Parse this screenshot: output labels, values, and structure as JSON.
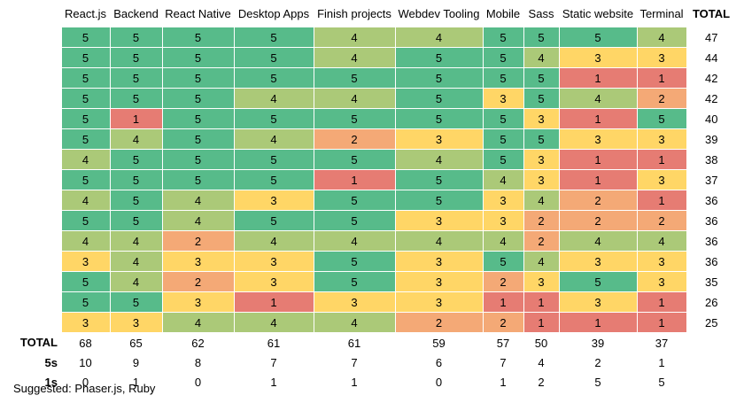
{
  "columns": [
    "React.js",
    "Backend",
    "React Native",
    "Desktop Apps",
    "Finish projects",
    "Webdev Tooling",
    "Mobile",
    "Sass",
    "Static website",
    "Terminal"
  ],
  "total_header": "TOTAL",
  "colors": {
    "5": "#57bb8a",
    "4": "#abc978",
    "3": "#ffd666",
    "2": "#f4a976",
    "1": "#e67c73"
  },
  "rows": [
    {
      "values": [
        5,
        5,
        5,
        5,
        4,
        4,
        5,
        5,
        5,
        4
      ],
      "total": "47"
    },
    {
      "values": [
        5,
        5,
        5,
        5,
        4,
        5,
        5,
        4,
        3,
        3
      ],
      "total": "44"
    },
    {
      "values": [
        5,
        5,
        5,
        5,
        5,
        5,
        5,
        5,
        1,
        1
      ],
      "total": "42"
    },
    {
      "values": [
        5,
        5,
        5,
        4,
        4,
        5,
        3,
        5,
        4,
        2
      ],
      "total": "42"
    },
    {
      "values": [
        5,
        1,
        5,
        5,
        5,
        5,
        5,
        3,
        1,
        5
      ],
      "total": "40"
    },
    {
      "values": [
        5,
        4,
        5,
        4,
        2,
        3,
        5,
        5,
        3,
        3
      ],
      "total": "39"
    },
    {
      "values": [
        4,
        5,
        5,
        5,
        5,
        4,
        5,
        3,
        1,
        1
      ],
      "total": "38"
    },
    {
      "values": [
        5,
        5,
        5,
        5,
        1,
        5,
        4,
        3,
        1,
        3
      ],
      "total": "37"
    },
    {
      "values": [
        4,
        5,
        4,
        3,
        5,
        5,
        3,
        4,
        2,
        1
      ],
      "total": "36"
    },
    {
      "values": [
        5,
        5,
        4,
        5,
        5,
        3,
        3,
        2,
        2,
        2
      ],
      "total": "36"
    },
    {
      "values": [
        4,
        4,
        2,
        4,
        4,
        4,
        4,
        2,
        4,
        4
      ],
      "total": "36"
    },
    {
      "values": [
        3,
        4,
        3,
        3,
        5,
        3,
        5,
        4,
        3,
        3
      ],
      "total": "36"
    },
    {
      "values": [
        5,
        4,
        2,
        3,
        5,
        3,
        2,
        3,
        5,
        3
      ],
      "total": "35"
    },
    {
      "values": [
        5,
        5,
        3,
        1,
        3,
        3,
        1,
        1,
        3,
        1
      ],
      "total": "26"
    },
    {
      "values": [
        3,
        3,
        4,
        4,
        4,
        2,
        2,
        1,
        1,
        1
      ],
      "total": "25"
    }
  ],
  "summary": [
    {
      "label": "TOTAL",
      "values": [
        "68",
        "65",
        "62",
        "61",
        "61",
        "59",
        "57",
        "50",
        "39",
        "37"
      ]
    },
    {
      "label": "5s",
      "values": [
        "10",
        "9",
        "8",
        "7",
        "7",
        "6",
        "7",
        "4",
        "2",
        "1"
      ]
    },
    {
      "label": "1s",
      "values": [
        "0",
        "1",
        "0",
        "1",
        "1",
        "0",
        "1",
        "2",
        "5",
        "5"
      ]
    }
  ],
  "note": "Suggested: Phaser.js, Ruby"
}
